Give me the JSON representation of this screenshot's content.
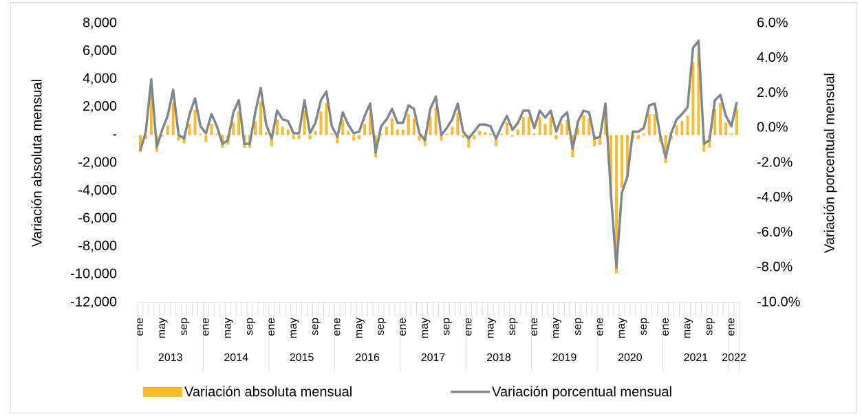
{
  "chart_data": {
    "type": "bar_line",
    "y_label": "Variación absoluta mensual",
    "y2_label": "Variación porcentual mensual",
    "categories": [
      "ene",
      null,
      null,
      null,
      "may",
      null,
      null,
      null,
      "sep",
      null,
      null,
      null,
      "ene",
      null,
      null,
      null,
      "may",
      null,
      null,
      null,
      "sep",
      null,
      null,
      null,
      "ene",
      null,
      null,
      null,
      "may",
      null,
      null,
      null,
      "sep",
      null,
      null,
      null,
      "ene",
      null,
      null,
      null,
      "may",
      null,
      null,
      null,
      "sep",
      null,
      null,
      null,
      "ene",
      null,
      null,
      null,
      "may",
      null,
      null,
      null,
      "sep",
      null,
      null,
      null,
      "ene",
      null,
      null,
      null,
      "may",
      null,
      null,
      null,
      "sep",
      null,
      null,
      null,
      "ene",
      null,
      null,
      null,
      "may",
      null,
      null,
      null,
      "sep",
      null,
      null,
      null,
      "ene",
      null,
      null,
      null,
      "may",
      null,
      null,
      null,
      "sep",
      null,
      null,
      null,
      "ene",
      null,
      null,
      null,
      "may",
      null,
      null,
      null,
      "sep",
      null,
      null,
      null,
      "ene",
      null
    ],
    "years": [
      "2013",
      "2014",
      "2015",
      "2016",
      "2017",
      "2018",
      "2019",
      "2020",
      "2021",
      "2022"
    ],
    "series": [
      {
        "name": "Variación absoluta mensual",
        "type": "bar",
        "color": "#FBBA2C",
        "axis": "y",
        "values": [
          -1200,
          -300,
          2900,
          -1200,
          -100,
          700,
          2300,
          -400,
          -600,
          800,
          1800,
          100,
          -500,
          800,
          100,
          -900,
          -700,
          900,
          1700,
          -900,
          -900,
          1000,
          2400,
          200,
          -800,
          1100,
          600,
          400,
          -300,
          -300,
          1800,
          -300,
          300,
          1700,
          2300,
          100,
          -600,
          1100,
          300,
          -400,
          -300,
          800,
          1600,
          -1600,
          100,
          600,
          1200,
          400,
          400,
          1500,
          1200,
          -400,
          -800,
          1300,
          2000,
          -400,
          100,
          600,
          1600,
          -200,
          -900,
          -300,
          300,
          200,
          100,
          -800,
          100,
          900,
          -100,
          400,
          1300,
          1300,
          100,
          1300,
          800,
          1300,
          -300,
          800,
          1100,
          -1600,
          500,
          1400,
          1200,
          -800,
          -700,
          1600,
          -4500,
          -9900,
          -3800,
          -3000,
          -300,
          -300,
          100,
          1500,
          1500,
          -500,
          -2000,
          -300,
          700,
          1000,
          1400,
          5200,
          5900,
          -1200,
          -900,
          1900,
          2300,
          900,
          100,
          1900
        ]
      },
      {
        "name": "Variación porcentual mensual",
        "type": "line",
        "color": "#7F868C",
        "axis": "y2",
        "values": [
          -1.3,
          -0.2,
          2.8,
          -1.1,
          -0.1,
          0.7,
          2.2,
          -0.4,
          -0.6,
          0.8,
          1.7,
          0.1,
          -0.3,
          0.8,
          0.1,
          -0.9,
          -0.7,
          0.9,
          1.6,
          -0.9,
          -0.9,
          0.9,
          2.3,
          0.2,
          -0.6,
          1.0,
          0.5,
          0.4,
          -0.3,
          -0.3,
          1.6,
          -0.3,
          0.3,
          1.6,
          2.1,
          0.1,
          -0.5,
          0.9,
          0.2,
          -0.3,
          -0.2,
          0.7,
          1.4,
          -1.4,
          0.1,
          0.5,
          1.1,
          0.3,
          0.3,
          1.3,
          1.1,
          -0.3,
          -0.7,
          1.1,
          1.8,
          -0.4,
          0.0,
          0.5,
          1.4,
          -0.2,
          -0.6,
          -0.2,
          0.2,
          0.2,
          0.1,
          -0.6,
          0.1,
          0.7,
          -0.1,
          0.3,
          1.0,
          1.0,
          0.0,
          1.0,
          0.6,
          1.0,
          -0.2,
          0.6,
          0.9,
          -1.2,
          0.4,
          1.0,
          0.9,
          -0.6,
          -0.5,
          1.4,
          -3.8,
          -8.0,
          -3.7,
          -2.8,
          -0.2,
          -0.2,
          0.0,
          1.3,
          1.4,
          -0.4,
          -1.7,
          -0.3,
          0.5,
          0.8,
          1.2,
          4.6,
          5.0,
          -0.9,
          -0.7,
          1.6,
          1.9,
          0.7,
          0.1,
          1.5
        ]
      }
    ],
    "ylim": [
      -12000,
      8000
    ],
    "yticks": [
      {
        "value": -12000,
        "label": "-12,000"
      },
      {
        "value": -10000,
        "label": "-10,000"
      },
      {
        "value": -8000,
        "label": "-8,000"
      },
      {
        "value": -6000,
        "label": "-6,000"
      },
      {
        "value": -4000,
        "label": "-4,000"
      },
      {
        "value": -2000,
        "label": "-2,000"
      },
      {
        "value": 0,
        "label": "-"
      },
      {
        "value": 2000,
        "label": "2,000"
      },
      {
        "value": 4000,
        "label": "4,000"
      },
      {
        "value": 6000,
        "label": "6,000"
      },
      {
        "value": 8000,
        "label": "8,000"
      }
    ],
    "y2lim": [
      -10,
      6
    ],
    "y2ticks": [
      {
        "value": -10,
        "label": "-10.0%"
      },
      {
        "value": -8,
        "label": "-8.0%"
      },
      {
        "value": -6,
        "label": "-6.0%"
      },
      {
        "value": -4,
        "label": "-4.0%"
      },
      {
        "value": -2,
        "label": "-2.0%"
      },
      {
        "value": 0,
        "label": "0.0%"
      },
      {
        "value": 2,
        "label": "2.0%"
      },
      {
        "value": 4,
        "label": "4.0%"
      },
      {
        "value": 6,
        "label": "6.0%"
      }
    ],
    "legend": "bottom"
  }
}
